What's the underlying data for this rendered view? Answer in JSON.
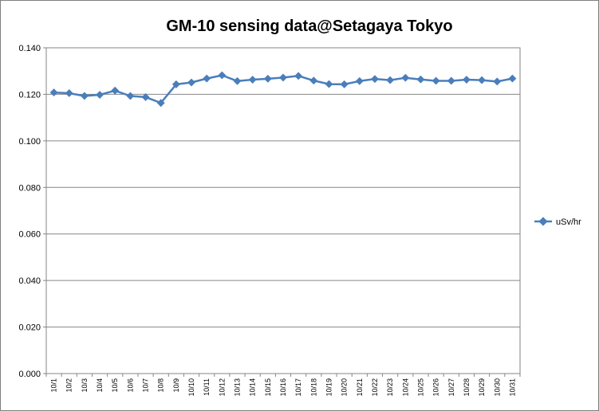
{
  "chart_data": {
    "type": "line",
    "title": "GM-10 sensing data@Setagaya Tokyo",
    "xlabel": "",
    "ylabel": "",
    "ylim": [
      0,
      0.14
    ],
    "ytick_step": 0.02,
    "ytick_decimals": 3,
    "grid": true,
    "legend_position": "right",
    "categories": [
      "10/1",
      "10/2",
      "10/3",
      "10/4",
      "10/5",
      "10/6",
      "10/7",
      "10/8",
      "10/9",
      "10/10",
      "10/11",
      "10/12",
      "10/13",
      "10/14",
      "10/15",
      "10/16",
      "10/17",
      "10/18",
      "10/19",
      "10/20",
      "10/21",
      "10/22",
      "10/23",
      "10/24",
      "10/25",
      "10/26",
      "10/27",
      "10/28",
      "10/29",
      "10/30",
      "10/31"
    ],
    "series": [
      {
        "name": "uSv/hr",
        "color": "#4a7ebb",
        "values": [
          0.1208,
          0.1205,
          0.1193,
          0.1198,
          0.1216,
          0.1193,
          0.1188,
          0.1163,
          0.1243,
          0.1251,
          0.1268,
          0.1282,
          0.1257,
          0.1263,
          0.1267,
          0.1272,
          0.1279,
          0.1259,
          0.1244,
          0.1243,
          0.1257,
          0.1266,
          0.1261,
          0.1271,
          0.1264,
          0.1258,
          0.1258,
          0.1263,
          0.1261,
          0.1255,
          0.1268
        ]
      }
    ]
  }
}
